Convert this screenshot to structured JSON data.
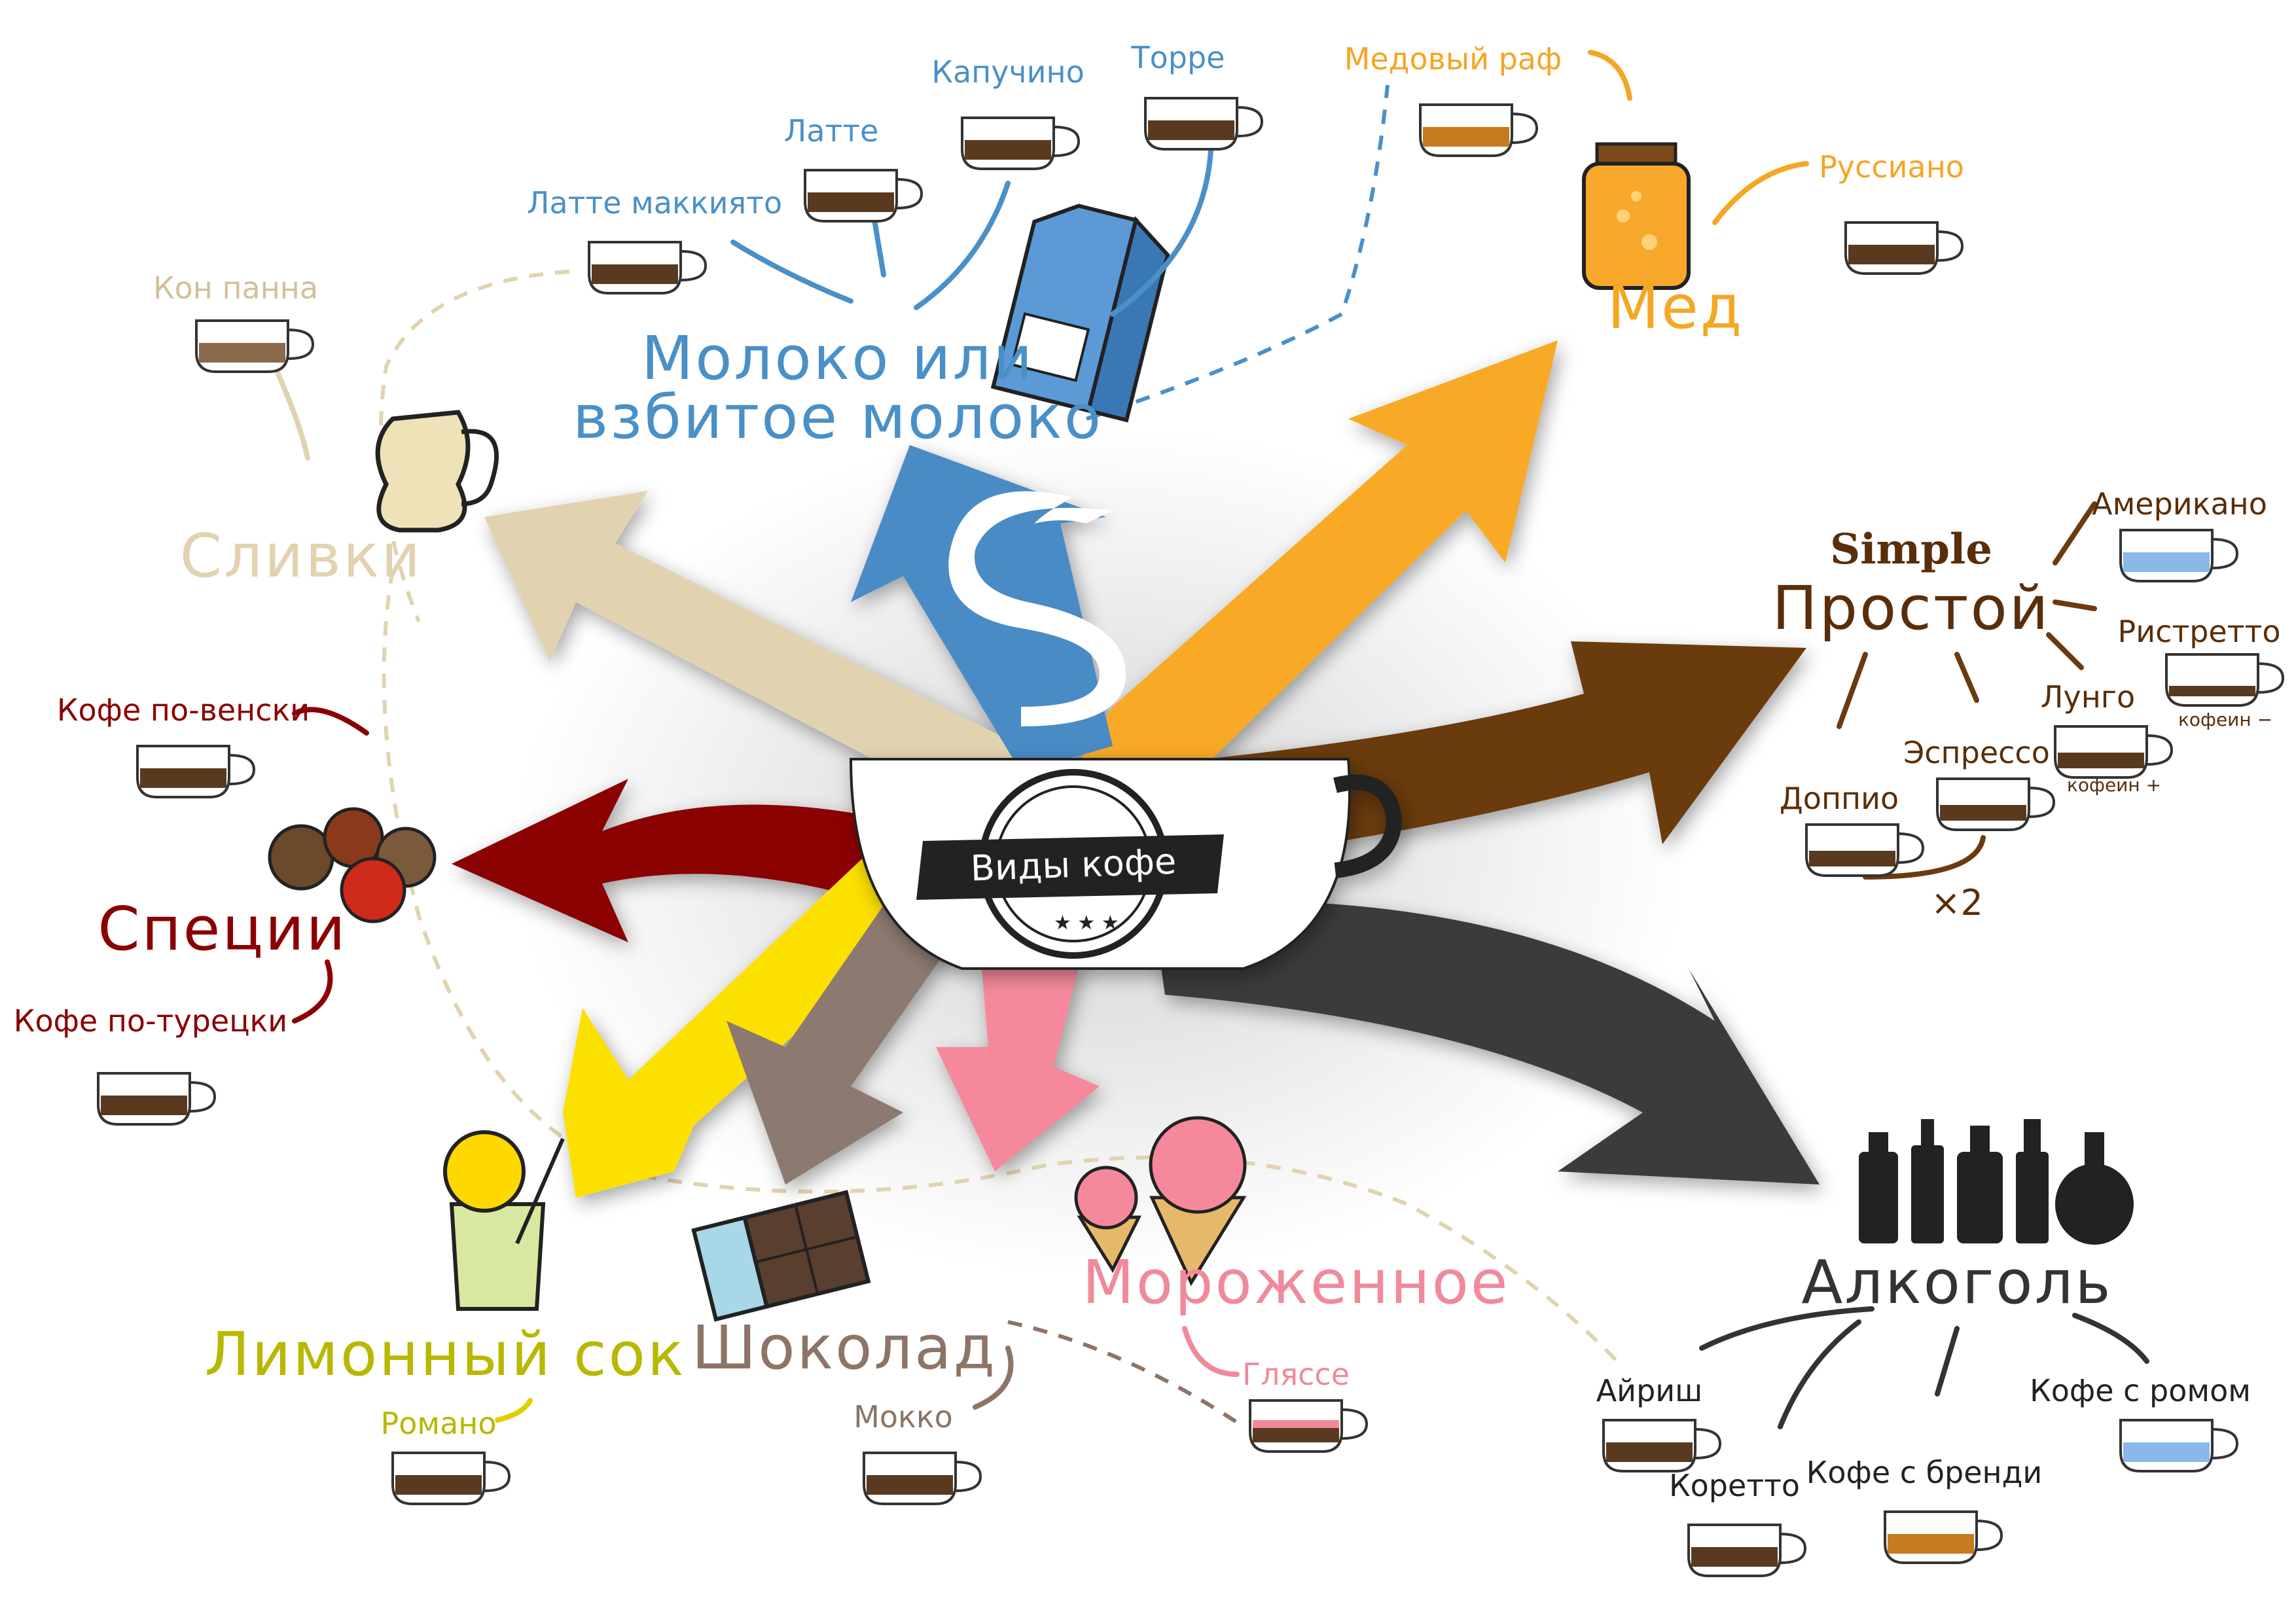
{
  "title": "Виды кофе",
  "colors": {
    "milk": "#4a90c8",
    "honey": "#f5a623",
    "simple": "#6b3a0e",
    "alcohol": "#333333",
    "icecream": "#f08a9b",
    "chocolate": "#8a7a70",
    "lemon": "#e0d000",
    "spices": "#8b0000",
    "cream": "#e2d3b0",
    "mocha": "#8c7467"
  },
  "categories": {
    "milk_line1": "Молоко или",
    "milk_line2": "взбитое молоко",
    "honey": "Мед",
    "simple_en": "Simple",
    "simple": "Простой",
    "alcohol": "Алкоголь",
    "icecream": "Мороженное",
    "chocolate": "Шоколад",
    "lemon": "Лимонный сок",
    "spices": "Специи",
    "cream": "Сливки"
  },
  "drinks": {
    "latte_macchiato": "Латте маккиято",
    "latte": "Латте",
    "cappuccino": "Капучино",
    "topper": "Торре",
    "honey_raf": "Медовый раф",
    "russiano": "Руссиано",
    "con_panna": "Кон панна",
    "americano": "Американо",
    "ristretto": "Ристретто",
    "lungo": "Лунго",
    "espresso": "Эспрессо",
    "doppio": "Доппио",
    "caffeine_minus": "кофеин −",
    "caffeine_plus": "кофеин +",
    "times_two": "×2",
    "vienna": "Кофе по-венски",
    "turkish": "Кофе по-турецки",
    "romano": "Романо",
    "mocha": "Мокко",
    "glace": "Гляссе",
    "irish": "Айриш",
    "corretto": "Коретто",
    "brandy": "Кофе с бренди",
    "rum": "Кофе с ромом"
  },
  "icons": [
    "milk-carton-icon",
    "honey-jar-icon",
    "cream-jug-icon",
    "spices-icon",
    "lemonade-icon",
    "chocolate-bar-icon",
    "ice-cream-icon",
    "bottles-icon",
    "coffee-cup-icon",
    "steam-s-icon",
    "badge-stars-icon"
  ]
}
